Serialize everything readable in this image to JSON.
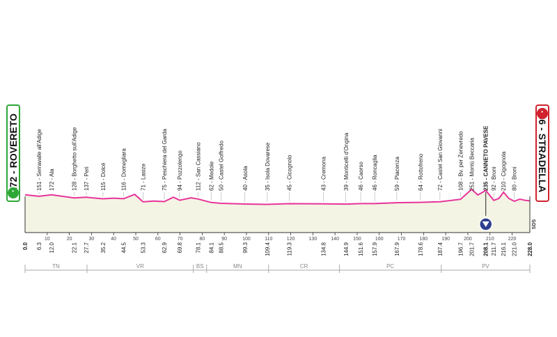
{
  "start": {
    "label": "172 - ROVERETO",
    "icon": "start-bike-icon",
    "color": "#2da836"
  },
  "finish": {
    "label": "86 - STRADELLA",
    "icon": "finish-bike-icon",
    "color": "#d0212c"
  },
  "colors": {
    "profile_line": "#e8339a",
    "fill": "#f3f4e3",
    "axis": "#555555",
    "marker": "#2c3e8f"
  },
  "distance_axis": {
    "ticks": [
      "10",
      "20",
      "30",
      "40",
      "50",
      "60",
      "70",
      "80",
      "90",
      "100",
      "110",
      "120",
      "130",
      "140",
      "150",
      "160",
      "170",
      "180",
      "190",
      "200",
      "210",
      "220"
    ]
  },
  "waypoints": [
    {
      "name": "151 - Serravalle all'Adige",
      "km": "6.3"
    },
    {
      "name": "172 - Ala",
      "km": "12.0"
    },
    {
      "name": "128 - Borghetto sull'Adige",
      "km": "22.1"
    },
    {
      "name": "137 - Peri",
      "km": "27.7"
    },
    {
      "name": "115 - Dolcè",
      "km": "35.2"
    },
    {
      "name": "116 - Domegliara",
      "km": "44.5"
    },
    {
      "name": "71 - Lasize",
      "km": "53.3"
    },
    {
      "name": "75 - Peschiera del Garda",
      "km": "62.9"
    },
    {
      "name": "94 - Pozzolengo",
      "km": "69.8"
    },
    {
      "name": "112 - San Cassiano",
      "km": "78.1"
    },
    {
      "name": "62 - Medole",
      "km": "84.1"
    },
    {
      "name": "50 - Castel Goffredo",
      "km": "88.5"
    },
    {
      "name": "40 - Asola",
      "km": "99.3"
    },
    {
      "name": "35 - Isola Dovarese",
      "km": "109.4"
    },
    {
      "name": "45 - Cicognolo",
      "km": "119.3"
    },
    {
      "name": "43 - Cremona",
      "km": "134.8"
    },
    {
      "name": "39 - Monticelli d'Ongina",
      "km": "144.9"
    },
    {
      "name": "46 - Caorso",
      "km": "151.6"
    },
    {
      "name": "46 - Roncaglia",
      "km": "157.9"
    },
    {
      "name": "59 - Piacenza",
      "km": "167.9"
    },
    {
      "name": "64 - Rottofreno",
      "km": "178.6"
    },
    {
      "name": "72 - Castel San Giovanni",
      "km": "187.4"
    },
    {
      "name": "108 - Bv. per Zenevredo",
      "km": "196.7"
    },
    {
      "name": "251 - Montù Beccaria",
      "km": "201.7"
    },
    {
      "name": "235 - CANNETO PAVESE",
      "km": "208.1",
      "bold": true
    },
    {
      "name": "92 - Broni",
      "km": "211.7"
    },
    {
      "name": "210 - Cigognola",
      "km": "216.1"
    },
    {
      "name": "80 - Broni",
      "km": "221.0"
    }
  ],
  "start_km": "0.0",
  "finish_km": "228.0",
  "finish_marker_text": "SDS",
  "regions": [
    {
      "code": "TN",
      "from_km": 0,
      "to_km": 28
    },
    {
      "code": "VR",
      "from_km": 28,
      "to_km": 76
    },
    {
      "code": "BS",
      "from_km": 76,
      "to_km": 82
    },
    {
      "code": "MN",
      "from_km": 82,
      "to_km": 110
    },
    {
      "code": "CR",
      "from_km": 110,
      "to_km": 142
    },
    {
      "code": "PC",
      "from_km": 142,
      "to_km": 188
    },
    {
      "code": "PV",
      "from_km": 188,
      "to_km": 228
    }
  ],
  "chart_data": {
    "type": "area",
    "xlabel": "",
    "ylabel": "",
    "x_unit": "km",
    "xlim": [
      0,
      228
    ],
    "ylim": [
      0,
      700
    ],
    "profile": [
      [
        0,
        172
      ],
      [
        6.3,
        151
      ],
      [
        12.0,
        172
      ],
      [
        22.1,
        128
      ],
      [
        27.7,
        137
      ],
      [
        35.2,
        115
      ],
      [
        40,
        124
      ],
      [
        44.5,
        116
      ],
      [
        49.5,
        178
      ],
      [
        53.3,
        71
      ],
      [
        58,
        82
      ],
      [
        62.9,
        75
      ],
      [
        67,
        138
      ],
      [
        69.8,
        94
      ],
      [
        75,
        128
      ],
      [
        78.1,
        112
      ],
      [
        84.1,
        62
      ],
      [
        88.5,
        50
      ],
      [
        99.3,
        40
      ],
      [
        109.4,
        35
      ],
      [
        119.3,
        45
      ],
      [
        134.8,
        43
      ],
      [
        144.9,
        39
      ],
      [
        151.6,
        46
      ],
      [
        157.9,
        46
      ],
      [
        167.9,
        59
      ],
      [
        178.6,
        64
      ],
      [
        187.4,
        72
      ],
      [
        196.7,
        108
      ],
      [
        201.7,
        251
      ],
      [
        204.5,
        170
      ],
      [
        208.1,
        235
      ],
      [
        211.7,
        92
      ],
      [
        214,
        120
      ],
      [
        216.1,
        210
      ],
      [
        218.5,
        120
      ],
      [
        221.0,
        80
      ],
      [
        223.5,
        110
      ],
      [
        226,
        92
      ],
      [
        228.0,
        86
      ]
    ],
    "marker_km": 208.1
  }
}
